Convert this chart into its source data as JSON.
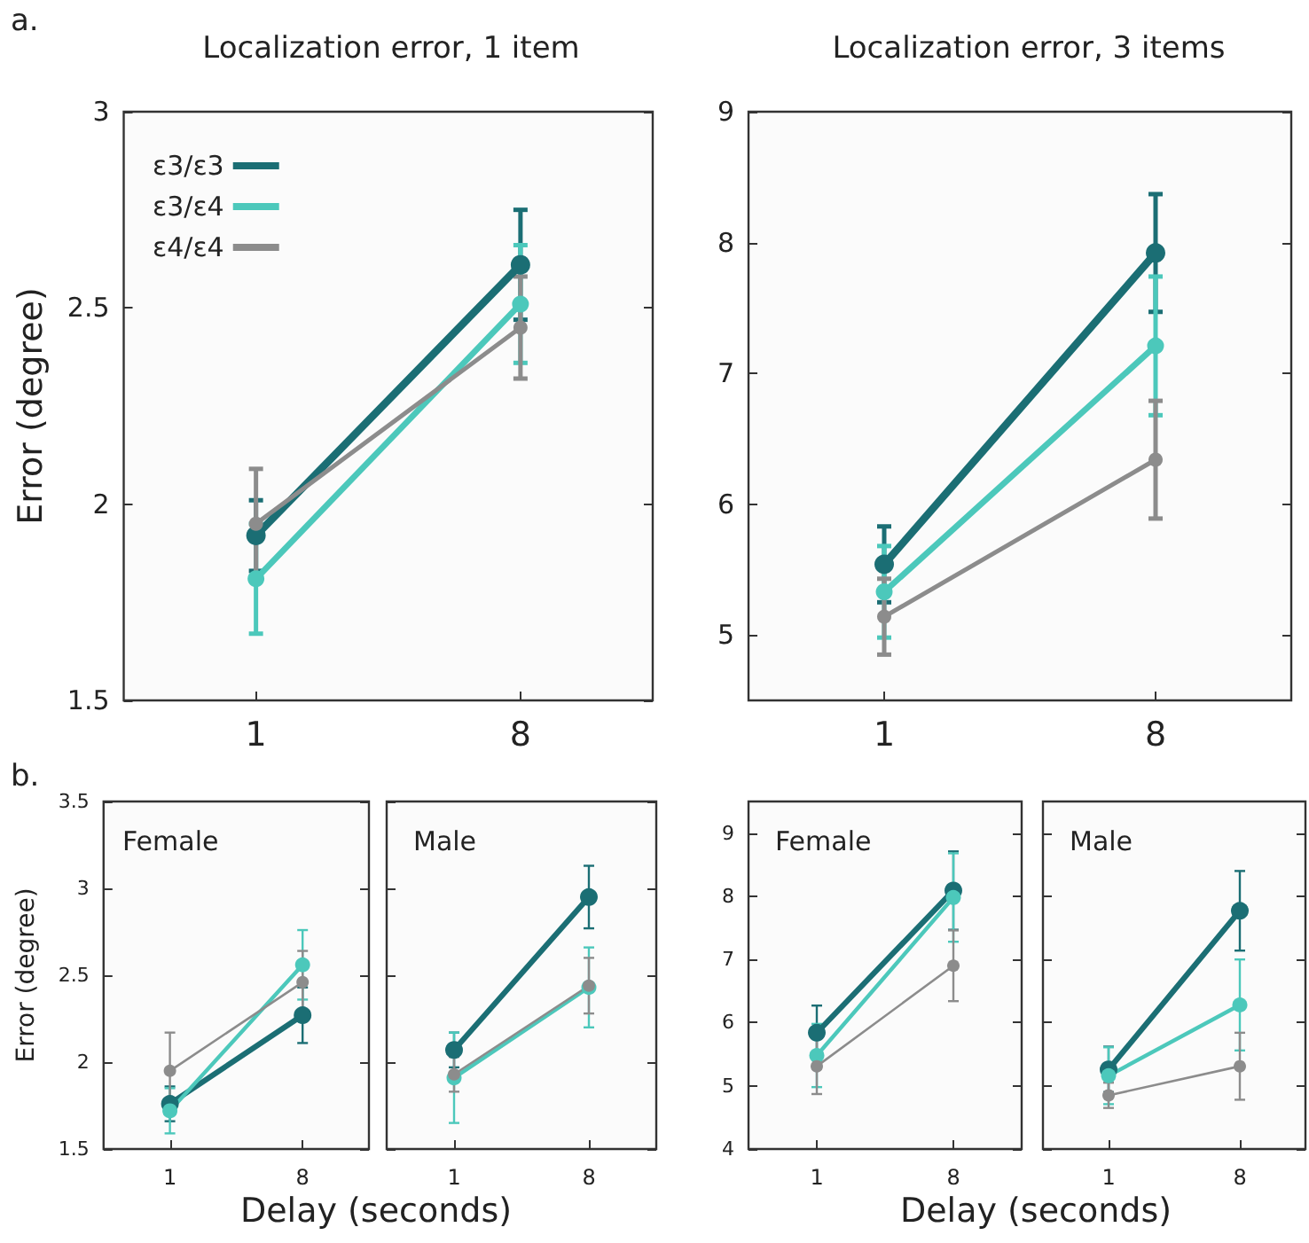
{
  "chart_data": [
    {
      "type": "line",
      "title": "Localization error, 1 item",
      "ylabel": "Error (degree)",
      "annotations": [
        "a."
      ],
      "categories": [
        "1",
        "8"
      ],
      "ylim": [
        1.5,
        3
      ],
      "yticks": [
        1.5,
        2,
        2.5,
        3
      ],
      "legend": "top left",
      "marker": "circle",
      "line_style": "solid",
      "grid": false,
      "series": [
        {
          "name": "ε3/ε3",
          "color": "#1b6e74",
          "values": [
            1.92,
            2.61
          ],
          "errors": [
            0.09,
            0.14
          ]
        },
        {
          "name": "ε3/ε4",
          "color": "#4cc8bb",
          "values": [
            1.81,
            2.51
          ],
          "errors": [
            0.14,
            0.15
          ]
        },
        {
          "name": "ε4/ε4",
          "color": "#8c8c8c",
          "values": [
            1.95,
            2.45
          ],
          "errors": [
            0.14,
            0.13
          ]
        }
      ]
    },
    {
      "type": "line",
      "title": "Localization error, 3 items",
      "categories": [
        "1",
        "8"
      ],
      "ylim": [
        4.5,
        9
      ],
      "yticks": [
        5,
        6,
        7,
        8,
        9
      ],
      "marker": "circle",
      "line_style": "solid",
      "grid": false,
      "series": [
        {
          "color": "#1b6e74",
          "values": [
            5.54,
            7.92
          ],
          "errors": [
            0.29,
            0.45
          ]
        },
        {
          "color": "#4cc8bb",
          "values": [
            5.33,
            7.21
          ],
          "errors": [
            0.35,
            0.53
          ]
        },
        {
          "color": "#8c8c8c",
          "values": [
            5.14,
            6.34
          ],
          "errors": [
            0.29,
            0.45
          ]
        }
      ]
    },
    {
      "type": "line",
      "title": "Female",
      "ylabel": "Error (degree)",
      "xlabel": "Delay (seconds)",
      "annotations": [
        "b."
      ],
      "categories": [
        "1",
        "8"
      ],
      "ylim": [
        1.5,
        3.5
      ],
      "yticks": [
        1.5,
        2,
        2.5,
        3,
        3.5
      ],
      "marker": "circle",
      "line_style": "solid",
      "grid": false,
      "series": [
        {
          "color": "#1b6e74",
          "values": [
            1.76,
            2.27
          ],
          "errors": [
            0.1,
            0.16
          ]
        },
        {
          "color": "#4cc8bb",
          "values": [
            1.72,
            2.56
          ],
          "errors": [
            0.13,
            0.2
          ]
        },
        {
          "color": "#8c8c8c",
          "values": [
            1.95,
            2.46
          ],
          "errors": [
            0.22,
            0.18
          ]
        }
      ]
    },
    {
      "type": "line",
      "title": "Male",
      "categories": [
        "1",
        "8"
      ],
      "ylim": [
        1.5,
        3.5
      ],
      "yticks": [
        1.5,
        2,
        2.5,
        3,
        3.5
      ],
      "tick_labels": "x",
      "marker": "circle",
      "line_style": "solid",
      "grid": false,
      "series": [
        {
          "color": "#1b6e74",
          "values": [
            2.07,
            2.95
          ],
          "errors": [
            0.1,
            0.18
          ]
        },
        {
          "color": "#4cc8bb",
          "values": [
            1.91,
            2.43
          ],
          "errors": [
            0.26,
            0.23
          ]
        },
        {
          "color": "#8c8c8c",
          "values": [
            1.93,
            2.44
          ],
          "errors": [
            0.1,
            0.16
          ]
        }
      ]
    },
    {
      "type": "line",
      "title": "Female",
      "xlabel": "Delay (seconds)",
      "categories": [
        "1",
        "8"
      ],
      "ylim": [
        4,
        9.5
      ],
      "yticks": [
        4,
        5,
        6,
        7,
        8,
        9
      ],
      "marker": "circle",
      "line_style": "solid",
      "grid": false,
      "series": [
        {
          "color": "#1b6e74",
          "values": [
            5.84,
            8.09
          ],
          "errors": [
            0.43,
            0.62
          ]
        },
        {
          "color": "#4cc8bb",
          "values": [
            5.48,
            7.98
          ],
          "errors": [
            0.5,
            0.7
          ]
        },
        {
          "color": "#8c8c8c",
          "values": [
            5.31,
            6.9
          ],
          "errors": [
            0.44,
            0.56
          ]
        }
      ]
    },
    {
      "type": "line",
      "title": "Male",
      "categories": [
        "1",
        "8"
      ],
      "ylim": [
        4,
        9.5
      ],
      "yticks": [
        4,
        5,
        6,
        7,
        8,
        9
      ],
      "tick_labels": "x",
      "marker": "circle",
      "line_style": "solid",
      "grid": false,
      "series": [
        {
          "color": "#1b6e74",
          "values": [
            5.26,
            7.77
          ],
          "errors": [
            0.36,
            0.63
          ]
        },
        {
          "color": "#4cc8bb",
          "values": [
            5.16,
            6.28
          ],
          "errors": [
            0.45,
            0.72
          ]
        },
        {
          "color": "#8c8c8c",
          "values": [
            4.85,
            5.31
          ],
          "errors": [
            0.2,
            0.53
          ]
        }
      ]
    }
  ]
}
